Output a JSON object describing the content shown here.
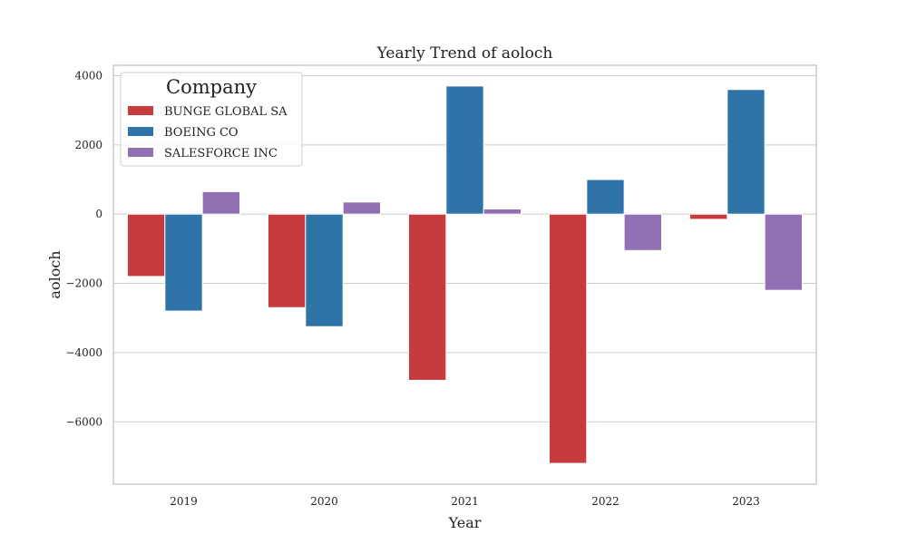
{
  "chart_data": {
    "type": "bar",
    "title": "Yearly Trend of aoloch",
    "xlabel": "Year",
    "ylabel": "aoloch",
    "categories": [
      "2019",
      "2020",
      "2021",
      "2022",
      "2023"
    ],
    "ylim": [
      -7800,
      4300
    ],
    "yticks": [
      4000,
      2000,
      0,
      -2000,
      -4000,
      -6000
    ],
    "ytick_labels": [
      "4000",
      "2000",
      "0",
      "−2000",
      "−4000",
      "−6000"
    ],
    "grid": true,
    "legend": {
      "title": "Company",
      "position": "top-left"
    },
    "series": [
      {
        "name": "BUNGE GLOBAL SA",
        "color": "#c73b3c",
        "values": [
          -1800,
          -2700,
          -4800,
          -7200,
          -150
        ]
      },
      {
        "name": "BOEING CO",
        "color": "#2f74a8",
        "values": [
          -2800,
          -3250,
          3700,
          1000,
          3600
        ]
      },
      {
        "name": "SALESFORCE INC",
        "color": "#9370b3",
        "values": [
          650,
          350,
          150,
          -1050,
          -2200
        ]
      }
    ]
  }
}
